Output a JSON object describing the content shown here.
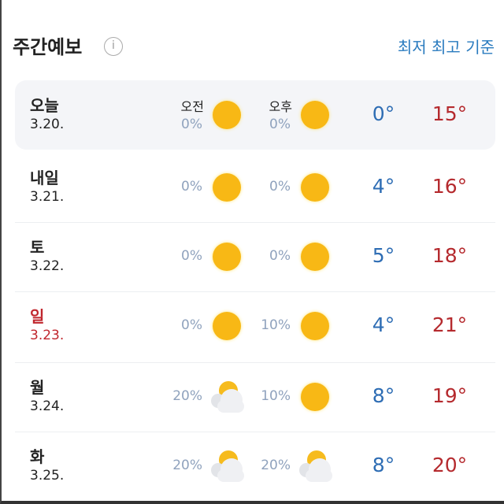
{
  "header": {
    "title": "주간예보",
    "info_icon": "info-icon",
    "basis_link": "최저 최고 기준"
  },
  "labels": {
    "am": "오전",
    "pm": "오후"
  },
  "colors": {
    "low": "#2e6db4",
    "high": "#b52a2e",
    "sunday": "#c0262d",
    "link": "#2a7bbf"
  },
  "days": [
    {
      "day": "오늘",
      "date": "3.20.",
      "am_pct": "0%",
      "am_icon": "sun",
      "pm_pct": "0%",
      "pm_icon": "sun",
      "low": "0°",
      "high": "15°"
    },
    {
      "day": "내일",
      "date": "3.21.",
      "am_pct": "0%",
      "am_icon": "sun",
      "pm_pct": "0%",
      "pm_icon": "sun",
      "low": "4°",
      "high": "16°"
    },
    {
      "day": "토",
      "date": "3.22.",
      "am_pct": "0%",
      "am_icon": "sun",
      "pm_pct": "0%",
      "pm_icon": "sun",
      "low": "5°",
      "high": "18°"
    },
    {
      "day": "일",
      "date": "3.23.",
      "am_pct": "0%",
      "am_icon": "sun",
      "pm_pct": "10%",
      "pm_icon": "sun",
      "low": "4°",
      "high": "21°",
      "holiday": true
    },
    {
      "day": "월",
      "date": "3.24.",
      "am_pct": "20%",
      "am_icon": "partly-cloudy",
      "pm_pct": "10%",
      "pm_icon": "sun",
      "low": "8°",
      "high": "19°"
    },
    {
      "day": "화",
      "date": "3.25.",
      "am_pct": "20%",
      "am_icon": "partly-cloudy",
      "pm_pct": "20%",
      "pm_icon": "partly-cloudy",
      "low": "8°",
      "high": "20°"
    }
  ]
}
